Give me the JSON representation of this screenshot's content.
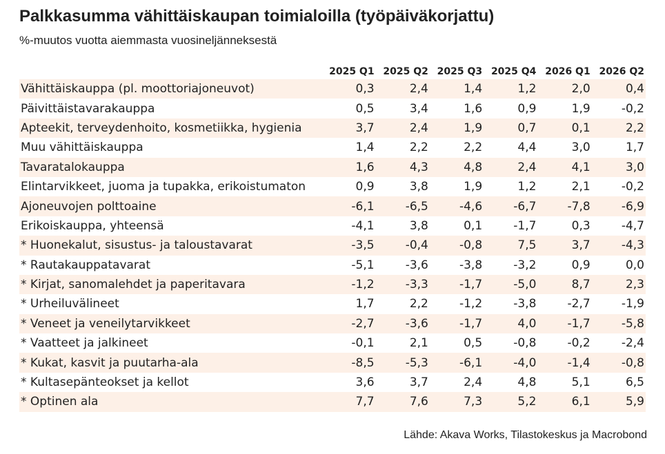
{
  "title": "Palkkasumma vähittäiskaupan toimialoilla (työpäiväkorjattu)",
  "subtitle": "%-muutos vuotta aiemmasta vuosineljänneksestä",
  "source": "Lähde: Akava Works, Tilastokeskus ja Macrobond",
  "chart_data": {
    "type": "table",
    "title": "Palkkasumma vähittäiskaupan toimialoilla (työpäiväkorjattu)",
    "subtitle": "%-muutos vuotta aiemmasta vuosineljänneksestä",
    "columns": [
      "2025 Q1",
      "2025 Q2",
      "2025 Q3",
      "2025 Q4",
      "2026 Q1",
      "2026 Q2"
    ],
    "rows": [
      {
        "label": "Vähittäiskauppa (pl. moottoriajoneuvot)",
        "values": [
          "0,3",
          "2,4",
          "1,4",
          "1,2",
          "2,0",
          "0,4"
        ]
      },
      {
        "label": "Päivittäistavarakauppa",
        "values": [
          "0,5",
          "3,4",
          "1,6",
          "0,9",
          "1,9",
          "-0,2"
        ]
      },
      {
        "label": "Apteekit, terveydenhoito, kosmetiikka, hygienia",
        "values": [
          "3,7",
          "2,4",
          "1,9",
          "0,7",
          "0,1",
          "2,2"
        ]
      },
      {
        "label": "Muu vähittäiskauppa",
        "values": [
          "1,4",
          "2,2",
          "2,2",
          "4,4",
          "3,0",
          "1,7"
        ]
      },
      {
        "label": "Tavaratalokauppa",
        "values": [
          "1,6",
          "4,3",
          "4,8",
          "2,4",
          "4,1",
          "3,0"
        ]
      },
      {
        "label": "Elintarvikkeet, juoma ja tupakka, erikoistumaton",
        "values": [
          "0,9",
          "3,8",
          "1,9",
          "1,2",
          "2,1",
          "-0,2"
        ]
      },
      {
        "label": "Ajoneuvojen polttoaine",
        "values": [
          "-6,1",
          "-6,5",
          "-4,6",
          "-6,7",
          "-7,8",
          "-6,9"
        ]
      },
      {
        "label": "Erikoiskauppa, yhteensä",
        "values": [
          "-4,1",
          "3,8",
          "0,1",
          "-1,7",
          "0,3",
          "-4,7"
        ]
      },
      {
        "label": "* Huonekalut, sisustus- ja taloustavarat",
        "values": [
          "-3,5",
          "-0,4",
          "-0,8",
          "7,5",
          "3,7",
          "-4,3"
        ]
      },
      {
        "label": "* Rautakauppatavarat",
        "values": [
          "-5,1",
          "-3,6",
          "-3,8",
          "-3,2",
          "0,9",
          "0,0"
        ]
      },
      {
        "label": "* Kirjat, sanomalehdet ja paperitavara",
        "values": [
          "-1,2",
          "-3,3",
          "-1,7",
          "-5,0",
          "8,7",
          "2,3"
        ]
      },
      {
        "label": "* Urheiluvälineet",
        "values": [
          "1,7",
          "2,2",
          "-1,2",
          "-3,8",
          "-2,7",
          "-1,9"
        ]
      },
      {
        "label": "* Veneet ja veneilytarvikkeet",
        "values": [
          "-2,7",
          "-3,6",
          "-1,7",
          "4,0",
          "-1,7",
          "-5,8"
        ]
      },
      {
        "label": "* Vaatteet ja jalkineet",
        "values": [
          "-0,1",
          "2,1",
          "0,5",
          "-0,8",
          "-0,2",
          "-2,4"
        ]
      },
      {
        "label": "* Kukat, kasvit ja puutarha-ala",
        "values": [
          "-8,5",
          "-5,3",
          "-6,1",
          "-4,0",
          "-1,4",
          "-0,8"
        ]
      },
      {
        "label": "* Kultasepänteokset ja kellot",
        "values": [
          "3,6",
          "3,7",
          "2,4",
          "4,8",
          "5,1",
          "6,5"
        ]
      },
      {
        "label": "* Optinen ala",
        "values": [
          "7,7",
          "7,6",
          "7,3",
          "5,2",
          "6,1",
          "5,9"
        ]
      }
    ],
    "row_shading": "#fdf0e7"
  }
}
